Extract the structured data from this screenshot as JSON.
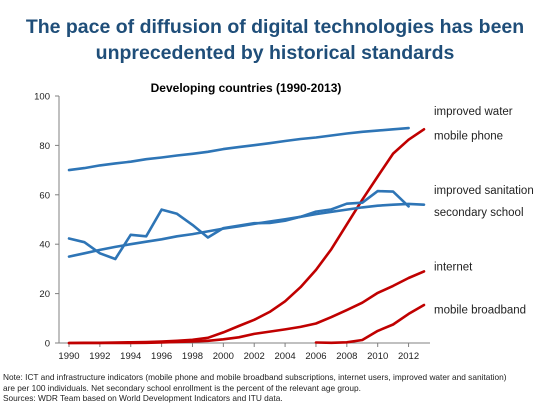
{
  "headline": {
    "line1": "The pace of diffusion of digital technologies has been",
    "line2": "unprecedented by historical standards"
  },
  "notes": {
    "line1": "Note: ICT and infrastructure indicators (mobile phone and mobile broadband subscriptions, internet users, improved water and sanitation)",
    "line2": "are per 100 individuals. Net secondary school enrollment is the percent of the relevant age group.",
    "line3": "Sources: WDR Team based on World Development Indicators and ITU data."
  },
  "colors": {
    "blue": "#2e75b6",
    "red": "#c00000",
    "title": "#1f4e79"
  },
  "chart_data": {
    "type": "line",
    "title": "Developing countries (1990-2013)",
    "xlabel": "",
    "ylabel": "",
    "xlim": [
      1990,
      2013
    ],
    "ylim": [
      0,
      100
    ],
    "xticks": [
      1990,
      1992,
      1994,
      1996,
      1998,
      2000,
      2002,
      2004,
      2006,
      2008,
      2010,
      2012
    ],
    "yticks": [
      0,
      20,
      40,
      60,
      80,
      100
    ],
    "grid": false,
    "legend": "direct labels at right",
    "series": [
      {
        "name": "improved water",
        "color": "#2e75b6",
        "x": [
          1990,
          1991,
          1992,
          1993,
          1994,
          1995,
          1996,
          1997,
          1998,
          1999,
          2000,
          2001,
          2002,
          2003,
          2004,
          2005,
          2006,
          2007,
          2008,
          2009,
          2010,
          2011,
          2012
        ],
        "y": [
          70,
          70.8,
          71.9,
          72.7,
          73.4,
          74.4,
          75.1,
          75.9,
          76.6,
          77.4,
          78.5,
          79.3,
          80.1,
          80.9,
          81.8,
          82.6,
          83.2,
          84,
          84.8,
          85.5,
          86,
          86.5,
          87
        ]
      },
      {
        "name": "mobile phone",
        "color": "#c00000",
        "x": [
          1990,
          1991,
          1992,
          1993,
          1994,
          1995,
          1996,
          1997,
          1998,
          1999,
          2000,
          2001,
          2002,
          2003,
          2004,
          2005,
          2006,
          2007,
          2008,
          2009,
          2010,
          2011,
          2012,
          2013
        ],
        "y": [
          0,
          0.1,
          0.1,
          0.2,
          0.3,
          0.4,
          0.6,
          0.9,
          1.3,
          2.1,
          4.3,
          6.9,
          9.4,
          12.6,
          16.9,
          22.6,
          29.6,
          38,
          48,
          58,
          67.4,
          76.7,
          82.3,
          86.5
        ]
      },
      {
        "name": "improved sanitation",
        "color": "#2e75b6",
        "x": [
          1990,
          1991,
          1992,
          1993,
          1994,
          1995,
          1996,
          1997,
          1998,
          1999,
          2000,
          2001,
          2002,
          2003,
          2004,
          2005,
          2006,
          2007,
          2008,
          2009,
          2010,
          2011,
          2012,
          2013
        ],
        "y": [
          35,
          36.3,
          37.7,
          38.9,
          40,
          41,
          42,
          43.2,
          44.1,
          45.2,
          46.3,
          47.2,
          48.2,
          49.2,
          50.1,
          51.1,
          52.2,
          53.1,
          54,
          54.9,
          55.6,
          56,
          56.3,
          56
        ]
      },
      {
        "name": "secondary school",
        "color": "#2e75b6",
        "x": [
          1990,
          1991,
          1992,
          1993,
          1994,
          1995,
          1996,
          1997,
          1998,
          1999,
          2000,
          2001,
          2002,
          2003,
          2004,
          2005,
          2006,
          2007,
          2008,
          2009,
          2010,
          2011,
          2012
        ],
        "y": [
          42.3,
          40.8,
          36.3,
          34,
          43.8,
          43.2,
          54,
          52.3,
          47.8,
          42.7,
          46.5,
          47.5,
          48.5,
          48.6,
          49.5,
          51.1,
          53.2,
          54.1,
          56.4,
          56.8,
          61.5,
          61.3,
          55.3
        ]
      },
      {
        "name": "internet",
        "color": "#c00000",
        "x": [
          1990,
          1991,
          1992,
          1993,
          1994,
          1995,
          1996,
          1997,
          1998,
          1999,
          2000,
          2001,
          2002,
          2003,
          2004,
          2005,
          2006,
          2007,
          2008,
          2009,
          2010,
          2011,
          2012,
          2013
        ],
        "y": [
          0,
          0,
          0,
          0,
          0,
          0.1,
          0.2,
          0.4,
          0.6,
          0.9,
          1.5,
          2.3,
          3.7,
          4.6,
          5.5,
          6.5,
          7.9,
          10.5,
          13.3,
          16.3,
          20.3,
          23.1,
          26.3,
          29
        ]
      },
      {
        "name": "mobile broadband",
        "color": "#c00000",
        "x": [
          2006,
          2007,
          2008,
          2009,
          2010,
          2011,
          2012,
          2013
        ],
        "y": [
          0.2,
          0.1,
          0.3,
          1.2,
          4.9,
          7.5,
          11.8,
          15.4
        ]
      }
    ],
    "labels": [
      {
        "text": "improved water",
        "y": 94
      },
      {
        "text": "mobile phone",
        "y": 84
      },
      {
        "text": "improved sanitation",
        "y": 62
      },
      {
        "text": "secondary school",
        "y": 53
      },
      {
        "text": "internet",
        "y": 31
      },
      {
        "text": "mobile broadband",
        "y": 13.5
      }
    ]
  }
}
